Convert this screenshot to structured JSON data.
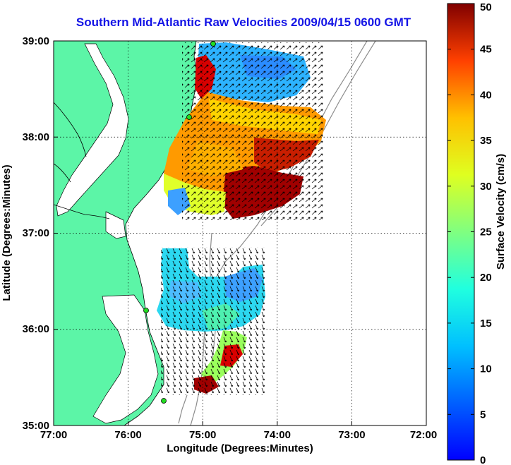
{
  "title": "Southern Mid-Atlantic Raw Velocities 2009/04/15 0600 GMT",
  "x_axis": {
    "label": "Longitude (Degrees:Minutes)",
    "ticks": [
      "77:00",
      "76:00",
      "75:00",
      "74:00",
      "73:00",
      "72:00"
    ]
  },
  "y_axis": {
    "label": "Latitude (Degrees:Minutes)",
    "ticks": [
      "39:00",
      "38:00",
      "37:00",
      "36:00",
      "35:00"
    ]
  },
  "colorbar": {
    "label": "Surface Velocity (cm/s)",
    "ticks": [
      "0",
      "5",
      "10",
      "15",
      "20",
      "25",
      "30",
      "35",
      "40",
      "45",
      "50"
    ],
    "colormap": "jet",
    "range": [
      0,
      50
    ]
  },
  "colors": {
    "land": "#5cf5a7",
    "water": "#ffffff",
    "coastline": "#000000",
    "bathymetry": "#8c8c8c",
    "grid": "#000000",
    "title": "#1414e6",
    "stations": "#22dd22"
  },
  "map": {
    "lon_range": [
      -77,
      -72
    ],
    "lat_range": [
      35,
      39
    ],
    "grid": "dotted"
  }
}
